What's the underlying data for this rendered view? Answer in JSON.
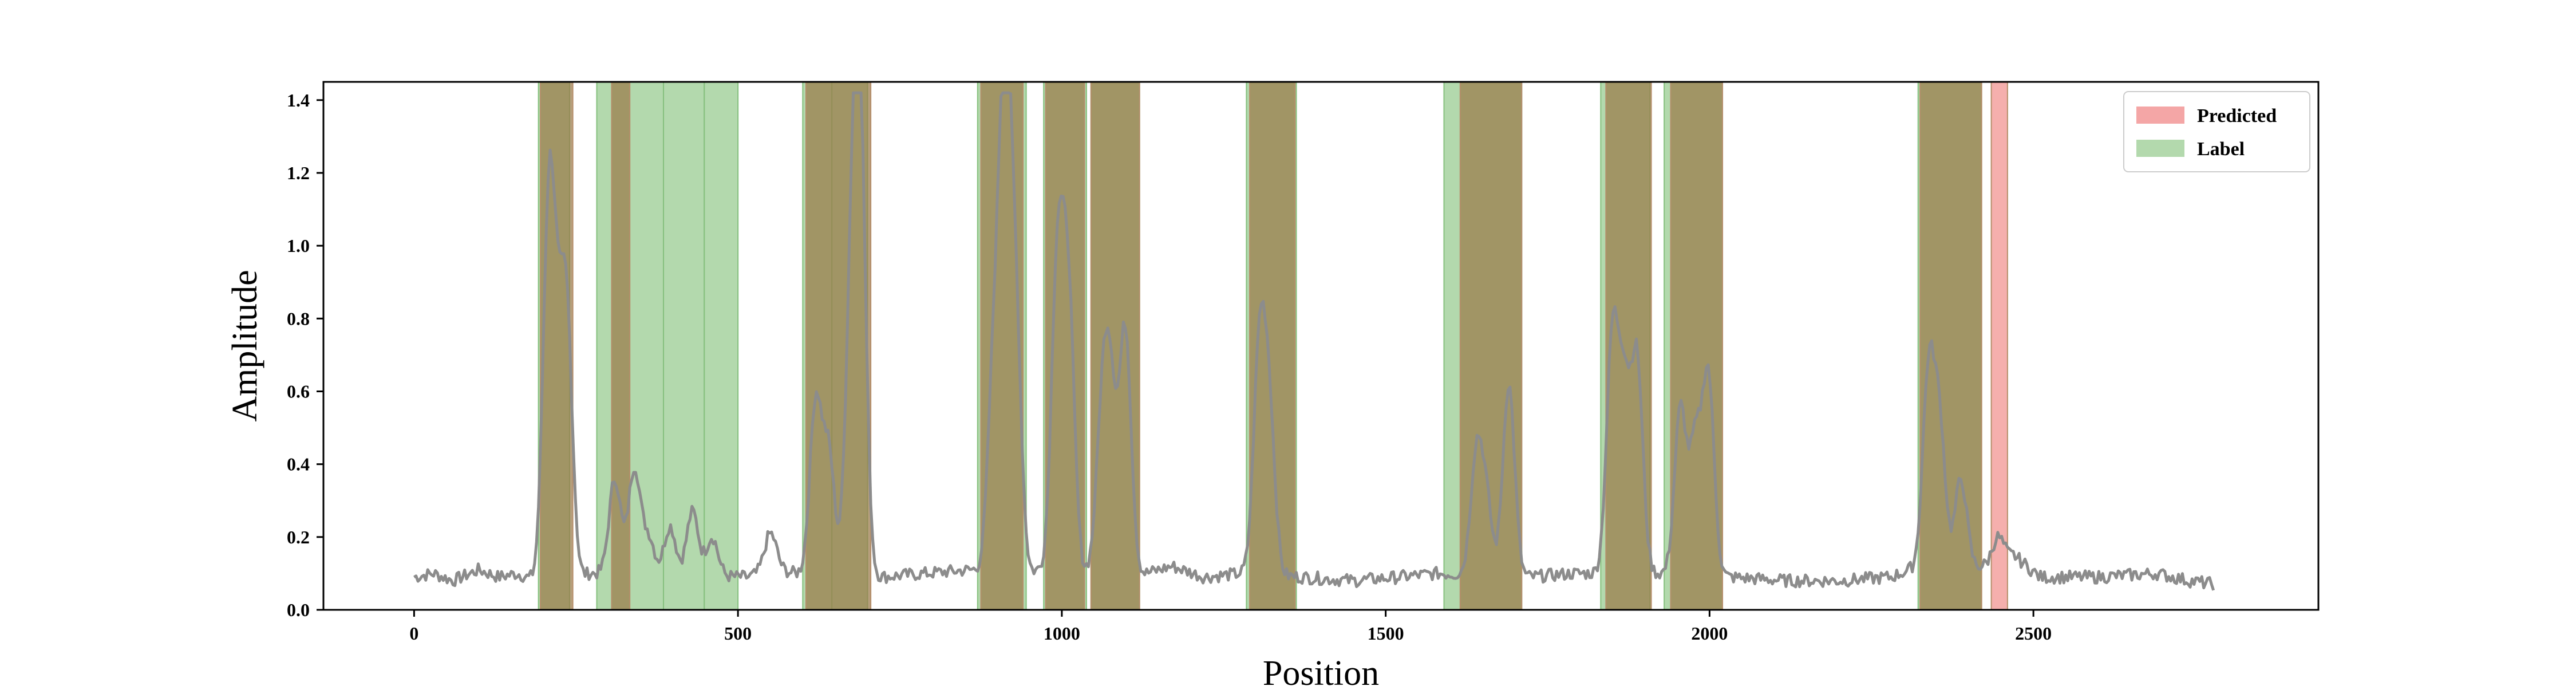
{
  "chart_data": {
    "type": "line",
    "xlabel": "Position",
    "ylabel": "Amplitude",
    "xlim": [
      -140,
      2940
    ],
    "ylim": [
      0,
      1.45
    ],
    "x_ticks": [
      0,
      500,
      1000,
      1500,
      2000,
      2500
    ],
    "x_tick_labels": [
      "0",
      "500",
      "1000",
      "1500",
      "2000",
      "2500"
    ],
    "y_ticks": [
      0.0,
      0.2,
      0.4,
      0.6,
      0.8,
      1.0,
      1.2,
      1.4
    ],
    "y_tick_labels": [
      "0.0",
      "0.2",
      "0.4",
      "0.6",
      "0.8",
      "1.0",
      "1.2",
      "1.4"
    ],
    "grid": false,
    "legend_position": "top-right",
    "colors": {
      "predicted": "#f4a6a6",
      "label": "#b3d9ad",
      "line": "#8c8c8c"
    },
    "legend": [
      {
        "name": "Predicted",
        "color": "#f4a6a6"
      },
      {
        "name": "Label",
        "color": "#b3d9ad"
      }
    ],
    "predicted_regions": [
      [
        195,
        245
      ],
      [
        305,
        333
      ],
      [
        605,
        705
      ],
      [
        875,
        940
      ],
      [
        975,
        1035
      ],
      [
        1045,
        1120
      ],
      [
        1290,
        1360
      ],
      [
        1615,
        1710
      ],
      [
        1840,
        1910
      ],
      [
        1940,
        2020
      ],
      [
        2325,
        2420
      ],
      [
        2435,
        2460
      ]
    ],
    "label_regions": [
      [
        192,
        240
      ],
      [
        282,
        385
      ],
      [
        385,
        448
      ],
      [
        448,
        500
      ],
      [
        600,
        645
      ],
      [
        645,
        700
      ],
      [
        870,
        945
      ],
      [
        972,
        1038
      ],
      [
        1045,
        1120
      ],
      [
        1285,
        1362
      ],
      [
        1590,
        1710
      ],
      [
        1832,
        1908
      ],
      [
        1930,
        2020
      ],
      [
        2322,
        2420
      ]
    ],
    "signal_baseline": [
      [
        0,
        0.09
      ],
      [
        30,
        0.1
      ],
      [
        60,
        0.08
      ],
      [
        100,
        0.11
      ],
      [
        130,
        0.09
      ],
      [
        160,
        0.1
      ],
      [
        185,
        0.08
      ],
      [
        255,
        0.09
      ],
      [
        270,
        0.1
      ],
      [
        515,
        0.09
      ],
      [
        560,
        0.11
      ],
      [
        590,
        0.1
      ],
      [
        720,
        0.09
      ],
      [
        790,
        0.1
      ],
      [
        860,
        0.11
      ],
      [
        950,
        0.1
      ],
      [
        965,
        0.11
      ],
      [
        1130,
        0.1
      ],
      [
        1170,
        0.12
      ],
      [
        1220,
        0.09
      ],
      [
        1280,
        0.1
      ],
      [
        1370,
        0.09
      ],
      [
        1450,
        0.08
      ],
      [
        1520,
        0.09
      ],
      [
        1580,
        0.1
      ],
      [
        1720,
        0.09
      ],
      [
        1790,
        0.1
      ],
      [
        1825,
        0.1
      ],
      [
        1920,
        0.1
      ],
      [
        2030,
        0.09
      ],
      [
        2120,
        0.08
      ],
      [
        2200,
        0.08
      ],
      [
        2280,
        0.09
      ],
      [
        2310,
        0.11
      ],
      [
        2430,
        0.12
      ],
      [
        2470,
        0.15
      ],
      [
        2510,
        0.09
      ],
      [
        2600,
        0.09
      ],
      [
        2690,
        0.1
      ],
      [
        2740,
        0.08
      ],
      [
        2780,
        0.07
      ]
    ],
    "signal_peaks": [
      {
        "x": 208,
        "y": 1.06
      },
      {
        "x": 220,
        "y": 0.46
      },
      {
        "x": 235,
        "y": 0.82
      },
      {
        "x": 310,
        "y": 0.36
      },
      {
        "x": 340,
        "y": 0.39
      },
      {
        "x": 362,
        "y": 0.2
      },
      {
        "x": 395,
        "y": 0.23
      },
      {
        "x": 430,
        "y": 0.27
      },
      {
        "x": 460,
        "y": 0.2
      },
      {
        "x": 550,
        "y": 0.21
      },
      {
        "x": 620,
        "y": 0.57
      },
      {
        "x": 640,
        "y": 0.43
      },
      {
        "x": 675,
        "y": 0.8
      },
      {
        "x": 688,
        "y": 1.34
      },
      {
        "x": 895,
        "y": 0.65
      },
      {
        "x": 912,
        "y": 1.38
      },
      {
        "x": 928,
        "y": 0.8
      },
      {
        "x": 993,
        "y": 0.94
      },
      {
        "x": 1010,
        "y": 0.86
      },
      {
        "x": 1062,
        "y": 0.5
      },
      {
        "x": 1075,
        "y": 0.58
      },
      {
        "x": 1098,
        "y": 0.77
      },
      {
        "x": 1305,
        "y": 0.7
      },
      {
        "x": 1320,
        "y": 0.53
      },
      {
        "x": 1640,
        "y": 0.42
      },
      {
        "x": 1655,
        "y": 0.29
      },
      {
        "x": 1690,
        "y": 0.62
      },
      {
        "x": 1850,
        "y": 0.74
      },
      {
        "x": 1868,
        "y": 0.58
      },
      {
        "x": 1888,
        "y": 0.68
      },
      {
        "x": 1955,
        "y": 0.55
      },
      {
        "x": 1978,
        "y": 0.45
      },
      {
        "x": 1998,
        "y": 0.64
      },
      {
        "x": 2338,
        "y": 0.64
      },
      {
        "x": 2355,
        "y": 0.5
      },
      {
        "x": 2388,
        "y": 0.36
      },
      {
        "x": 2445,
        "y": 0.2
      }
    ]
  }
}
